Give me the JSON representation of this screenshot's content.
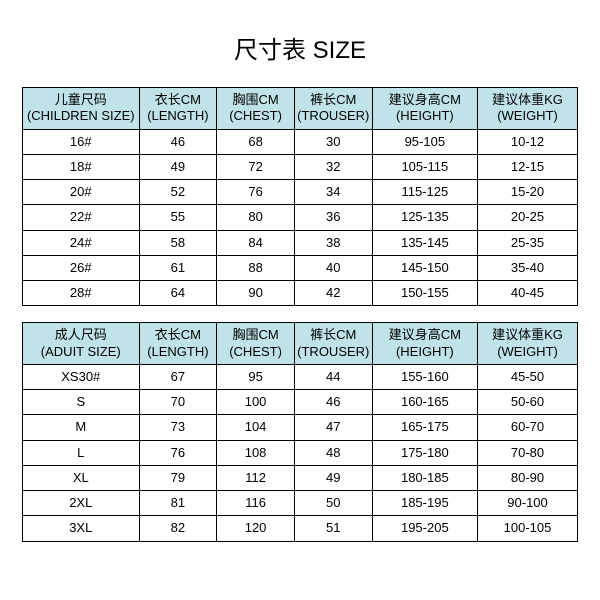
{
  "title": "尺寸表 SIZE",
  "title_fontsize": 24,
  "header_background": "#bfe3e8",
  "header_fontsize": 13,
  "body_fontsize": 13,
  "gap_height": 16,
  "children": {
    "columns": [
      {
        "cn": "儿童尺码",
        "en": "(CHILDREN SIZE)"
      },
      {
        "cn": "衣长CM",
        "en": "(LENGTH)"
      },
      {
        "cn": "胸围CM",
        "en": "(CHEST)"
      },
      {
        "cn": "裤长CM",
        "en": "(TROUSER)"
      },
      {
        "cn": "建议身高CM",
        "en": "(HEIGHT)"
      },
      {
        "cn": "建议体重KG",
        "en": "(WEIGHT)"
      }
    ],
    "col_widths_pct": [
      21,
      14,
      14,
      14,
      19,
      18
    ],
    "rows": [
      [
        "16#",
        "46",
        "68",
        "30",
        "95-105",
        "10-12"
      ],
      [
        "18#",
        "49",
        "72",
        "32",
        "105-115",
        "12-15"
      ],
      [
        "20#",
        "52",
        "76",
        "34",
        "115-125",
        "15-20"
      ],
      [
        "22#",
        "55",
        "80",
        "36",
        "125-135",
        "20-25"
      ],
      [
        "24#",
        "58",
        "84",
        "38",
        "135-145",
        "25-35"
      ],
      [
        "26#",
        "61",
        "88",
        "40",
        "145-150",
        "35-40"
      ],
      [
        "28#",
        "64",
        "90",
        "42",
        "150-155",
        "40-45"
      ]
    ]
  },
  "adult": {
    "columns": [
      {
        "cn": "成人尺码",
        "en": "(ADUIT SIZE)"
      },
      {
        "cn": "衣长CM",
        "en": "(LENGTH)"
      },
      {
        "cn": "胸围CM",
        "en": "(CHEST)"
      },
      {
        "cn": "裤长CM",
        "en": "(TROUSER)"
      },
      {
        "cn": "建议身高CM",
        "en": "(HEIGHT)"
      },
      {
        "cn": "建议体重KG",
        "en": "(WEIGHT)"
      }
    ],
    "rows": [
      [
        "XS30#",
        "67",
        "95",
        "44",
        "155-160",
        "45-50"
      ],
      [
        "S",
        "70",
        "100",
        "46",
        "160-165",
        "50-60"
      ],
      [
        "M",
        "73",
        "104",
        "47",
        "165-175",
        "60-70"
      ],
      [
        "L",
        "76",
        "108",
        "48",
        "175-180",
        "70-80"
      ],
      [
        "XL",
        "79",
        "112",
        "49",
        "180-185",
        "80-90"
      ],
      [
        "2XL",
        "81",
        "116",
        "50",
        "185-195",
        "90-100"
      ],
      [
        "3XL",
        "82",
        "120",
        "51",
        "195-205",
        "100-105"
      ]
    ]
  }
}
